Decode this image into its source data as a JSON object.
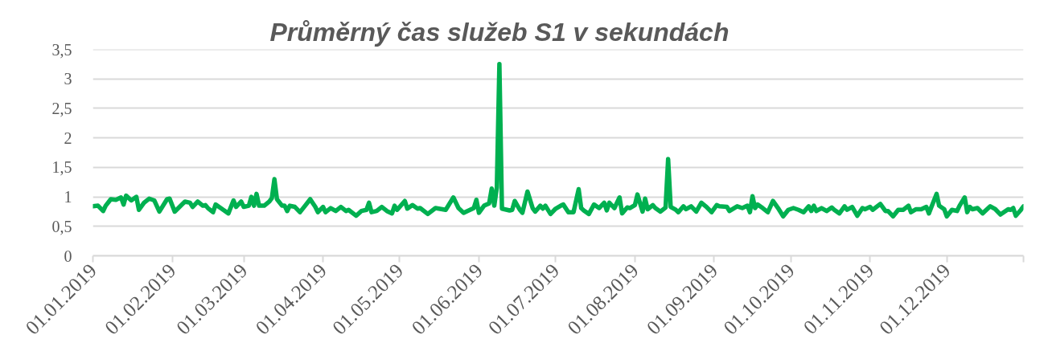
{
  "chart_data": {
    "type": "line",
    "title": "Průměrný čas služeb S1 v sekundách",
    "x": [
      "2019-01-01",
      "2019-01-03",
      "2019-01-05",
      "2019-01-06",
      "2019-01-08",
      "2019-01-10",
      "2019-01-12",
      "2019-01-13",
      "2019-01-14",
      "2019-01-16",
      "2019-01-18",
      "2019-01-19",
      "2019-01-21",
      "2019-01-23",
      "2019-01-25",
      "2019-01-27",
      "2019-01-30",
      "2019-01-31",
      "2019-02-02",
      "2019-02-06",
      "2019-02-08",
      "2019-02-09",
      "2019-02-11",
      "2019-02-13",
      "2019-02-14",
      "2019-02-15",
      "2019-02-17",
      "2019-02-18",
      "2019-02-20",
      "2019-02-21",
      "2019-02-23",
      "2019-02-25",
      "2019-02-26",
      "2019-02-28",
      "2019-03-01",
      "2019-03-03",
      "2019-03-04",
      "2019-03-05",
      "2019-03-06",
      "2019-03-07",
      "2019-03-09",
      "2019-03-11",
      "2019-03-12",
      "2019-03-13",
      "2019-03-14",
      "2019-03-16",
      "2019-03-17",
      "2019-03-18",
      "2019-03-19",
      "2019-03-21",
      "2019-03-23",
      "2019-03-25",
      "2019-03-27",
      "2019-03-29",
      "2019-03-30",
      "2019-04-01",
      "2019-04-02",
      "2019-04-04",
      "2019-04-06",
      "2019-04-08",
      "2019-04-10",
      "2019-04-11",
      "2019-04-14",
      "2019-04-16",
      "2019-04-18",
      "2019-04-19",
      "2019-04-20",
      "2019-04-22",
      "2019-04-24",
      "2019-04-26",
      "2019-04-28",
      "2019-04-29",
      "2019-04-30",
      "2019-05-03",
      "2019-05-04",
      "2019-05-06",
      "2019-05-08",
      "2019-05-09",
      "2019-05-12",
      "2019-05-15",
      "2019-05-19",
      "2019-05-22",
      "2019-05-24",
      "2019-05-26",
      "2019-05-30",
      "2019-05-31",
      "2019-06-01",
      "2019-06-03",
      "2019-06-05",
      "2019-06-06",
      "2019-06-07",
      "2019-06-08",
      "2019-06-09",
      "2019-06-10",
      "2019-06-13",
      "2019-06-14",
      "2019-06-15",
      "2019-06-17",
      "2019-06-18",
      "2019-06-20",
      "2019-06-22",
      "2019-06-23",
      "2019-06-25",
      "2019-06-26",
      "2019-06-27",
      "2019-06-29",
      "2019-07-01",
      "2019-07-03",
      "2019-07-04",
      "2019-07-06",
      "2019-07-08",
      "2019-07-10",
      "2019-07-11",
      "2019-07-12",
      "2019-07-14",
      "2019-07-16",
      "2019-07-18",
      "2019-07-20",
      "2019-07-21",
      "2019-07-22",
      "2019-07-24",
      "2019-07-26",
      "2019-07-27",
      "2019-07-29",
      "2019-07-30",
      "2019-08-01",
      "2019-08-02",
      "2019-08-04",
      "2019-08-05",
      "2019-08-06",
      "2019-08-08",
      "2019-08-09",
      "2019-08-11",
      "2019-08-13",
      "2019-08-14",
      "2019-08-15",
      "2019-08-17",
      "2019-08-18",
      "2019-08-20",
      "2019-08-21",
      "2019-08-23",
      "2019-08-25",
      "2019-08-27",
      "2019-08-29",
      "2019-08-31",
      "2019-09-02",
      "2019-09-03",
      "2019-09-06",
      "2019-09-07",
      "2019-09-10",
      "2019-09-12",
      "2019-09-14",
      "2019-09-15",
      "2019-09-16",
      "2019-09-17",
      "2019-09-18",
      "2019-09-20",
      "2019-09-22",
      "2019-09-24",
      "2019-09-26",
      "2019-09-28",
      "2019-09-30",
      "2019-10-02",
      "2019-10-04",
      "2019-10-06",
      "2019-10-08",
      "2019-10-09",
      "2019-10-10",
      "2019-10-11",
      "2019-10-13",
      "2019-10-15",
      "2019-10-17",
      "2019-10-18",
      "2019-10-20",
      "2019-10-22",
      "2019-10-23",
      "2019-10-25",
      "2019-10-27",
      "2019-10-29",
      "2019-10-30",
      "2019-11-01",
      "2019-11-02",
      "2019-11-05",
      "2019-11-07",
      "2019-11-08",
      "2019-11-10",
      "2019-11-12",
      "2019-11-14",
      "2019-11-16",
      "2019-11-17",
      "2019-11-19",
      "2019-11-21",
      "2019-11-23",
      "2019-11-24",
      "2019-11-27",
      "2019-11-28",
      "2019-11-30",
      "2019-12-01",
      "2019-12-03",
      "2019-12-05",
      "2019-12-06",
      "2019-12-08",
      "2019-12-09",
      "2019-12-10",
      "2019-12-11",
      "2019-12-13",
      "2019-12-15",
      "2019-12-18",
      "2019-12-20",
      "2019-12-22",
      "2019-12-25",
      "2019-12-26",
      "2019-12-27",
      "2019-12-28",
      "2019-12-30",
      "2019-12-31"
    ],
    "series": [
      {
        "color": "#00b050",
        "values": [
          0.84,
          0.85,
          0.76,
          0.85,
          0.96,
          0.95,
          0.99,
          0.87,
          1.02,
          0.94,
          1.0,
          0.78,
          0.9,
          0.97,
          0.94,
          0.75,
          0.96,
          0.97,
          0.75,
          0.92,
          0.9,
          0.83,
          0.92,
          0.85,
          0.86,
          0.81,
          0.74,
          0.87,
          0.81,
          0.78,
          0.72,
          0.94,
          0.83,
          0.92,
          0.83,
          0.85,
          1.0,
          0.85,
          1.05,
          0.85,
          0.85,
          0.92,
          0.98,
          1.3,
          0.96,
          0.85,
          0.85,
          0.76,
          0.85,
          0.83,
          0.74,
          0.85,
          0.96,
          0.83,
          0.74,
          0.83,
          0.74,
          0.81,
          0.76,
          0.83,
          0.76,
          0.78,
          0.68,
          0.76,
          0.78,
          0.9,
          0.74,
          0.76,
          0.83,
          0.76,
          0.72,
          0.85,
          0.78,
          0.93,
          0.8,
          0.86,
          0.8,
          0.81,
          0.71,
          0.81,
          0.78,
          0.99,
          0.81,
          0.73,
          0.81,
          0.95,
          0.73,
          0.85,
          0.89,
          1.14,
          0.85,
          1.16,
          3.25,
          0.8,
          0.77,
          0.78,
          0.93,
          0.78,
          0.73,
          1.09,
          0.81,
          0.75,
          0.85,
          0.8,
          0.85,
          0.71,
          0.8,
          0.85,
          0.87,
          0.74,
          0.74,
          1.13,
          0.81,
          0.77,
          0.71,
          0.87,
          0.81,
          0.9,
          0.77,
          0.9,
          0.81,
          0.99,
          0.72,
          0.82,
          0.81,
          0.86,
          1.04,
          0.75,
          0.97,
          0.79,
          0.86,
          0.81,
          0.75,
          0.82,
          1.64,
          0.83,
          0.78,
          0.74,
          0.84,
          0.79,
          0.84,
          0.75,
          0.9,
          0.83,
          0.74,
          0.86,
          0.84,
          0.83,
          0.76,
          0.84,
          0.81,
          0.85,
          0.74,
          1.01,
          0.81,
          0.87,
          0.81,
          0.74,
          0.93,
          0.81,
          0.67,
          0.78,
          0.81,
          0.78,
          0.74,
          0.84,
          0.76,
          0.85,
          0.76,
          0.81,
          0.76,
          0.82,
          0.78,
          0.72,
          0.84,
          0.78,
          0.83,
          0.68,
          0.81,
          0.79,
          0.83,
          0.78,
          0.88,
          0.76,
          0.76,
          0.67,
          0.78,
          0.78,
          0.85,
          0.74,
          0.79,
          0.79,
          0.83,
          0.72,
          1.05,
          0.85,
          0.79,
          0.67,
          0.78,
          0.76,
          0.85,
          0.99,
          0.74,
          0.83,
          0.79,
          0.81,
          0.72,
          0.84,
          0.79,
          0.7,
          0.79,
          0.78,
          0.81,
          0.68,
          0.78,
          0.84
        ]
      }
    ],
    "xlim": [
      "2019-01-01",
      "2019-12-31"
    ],
    "xticks": [
      {
        "value": "2019-01-01",
        "label": "01.01.2019"
      },
      {
        "value": "2019-02-01",
        "label": "01.02.2019"
      },
      {
        "value": "2019-03-01",
        "label": "01.03.2019"
      },
      {
        "value": "2019-04-01",
        "label": "01.04.2019"
      },
      {
        "value": "2019-05-01",
        "label": "01.05.2019"
      },
      {
        "value": "2019-06-01",
        "label": "01.06.2019"
      },
      {
        "value": "2019-07-01",
        "label": "01.07.2019"
      },
      {
        "value": "2019-08-01",
        "label": "01.08.2019"
      },
      {
        "value": "2019-09-01",
        "label": "01.09.2019"
      },
      {
        "value": "2019-10-01",
        "label": "01.10.2019"
      },
      {
        "value": "2019-11-01",
        "label": "01.11.2019"
      },
      {
        "value": "2019-12-01",
        "label": "01.12.2019"
      },
      {
        "value": "2019-12-31",
        "label": null
      }
    ],
    "ylim": [
      0,
      3.5
    ],
    "yticks": [
      0,
      {
        "value": 0.5,
        "label": "0,5"
      },
      1,
      {
        "value": 1.5,
        "label": "1,5"
      },
      2,
      {
        "value": 2.5,
        "label": "2,5"
      },
      3,
      {
        "value": 3.5,
        "label": "3,5"
      }
    ],
    "grid": "y"
  }
}
